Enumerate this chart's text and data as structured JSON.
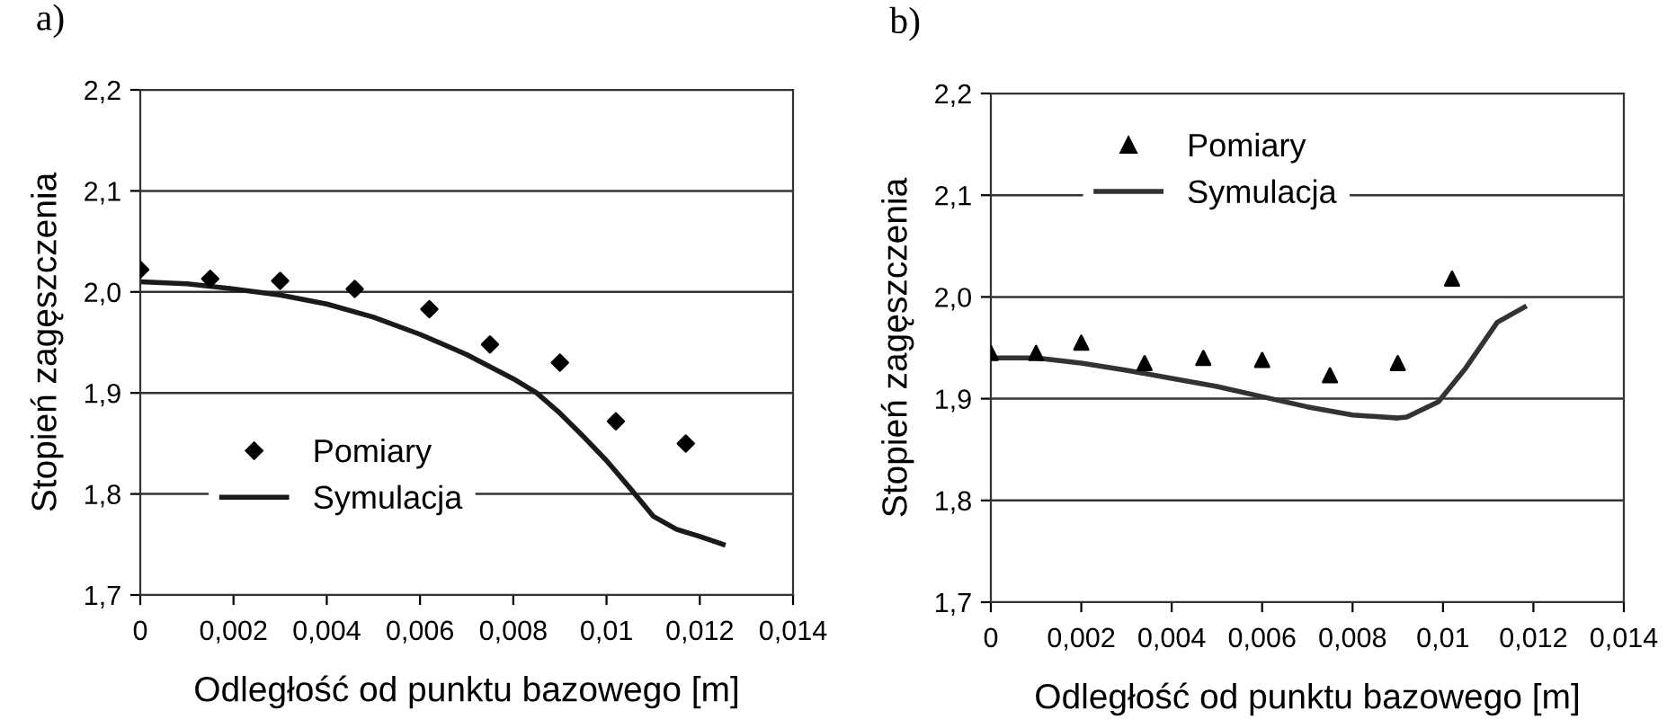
{
  "chart_data": [
    {
      "type": "scatter",
      "title": "a)",
      "xlabel": "Odległość od punktu bazowego [m]",
      "ylabel": "Stopień zagęszczenia",
      "xlim": [
        0,
        0.014
      ],
      "ylim": [
        1.7,
        2.2
      ],
      "xticks": [
        {
          "value": 0,
          "label": "0"
        },
        {
          "value": 0.002,
          "label": "0,002"
        },
        {
          "value": 0.004,
          "label": "0,004"
        },
        {
          "value": 0.006,
          "label": "0,006"
        },
        {
          "value": 0.008,
          "label": "0,008"
        },
        {
          "value": 0.01,
          "label": "0,01"
        },
        {
          "value": 0.012,
          "label": "0,012"
        },
        {
          "value": 0.014,
          "label": "0,014"
        }
      ],
      "yticks": [
        {
          "value": 1.7,
          "label": "1,7"
        },
        {
          "value": 1.8,
          "label": "1,8"
        },
        {
          "value": 1.9,
          "label": "1,9"
        },
        {
          "value": 2.0,
          "label": "2,0"
        },
        {
          "value": 2.1,
          "label": "2,1"
        },
        {
          "value": 2.2,
          "label": "2,2"
        }
      ],
      "grid": "y",
      "legend": "bottom left",
      "series": [
        {
          "name": "Pomiary",
          "marker": "diamond",
          "color": "#000000",
          "x": [
            0,
            0.0015,
            0.003,
            0.0046,
            0.0062,
            0.0075,
            0.009,
            0.0102,
            0.0117
          ],
          "values": [
            2.022,
            2.013,
            2.011,
            2.003,
            1.983,
            1.948,
            1.93,
            1.872,
            1.85
          ]
        },
        {
          "name": "Symulacja",
          "type": "line",
          "marker": "none",
          "line_style": "solid",
          "color": "#1a1a1a",
          "x": [
            0,
            0.001,
            0.002,
            0.003,
            0.004,
            0.005,
            0.006,
            0.007,
            0.008,
            0.0085,
            0.009,
            0.0095,
            0.01,
            0.0105,
            0.011,
            0.0115,
            0.012,
            0.0125
          ],
          "values": [
            2.01,
            2.008,
            2.003,
            1.997,
            1.988,
            1.975,
            1.958,
            1.938,
            1.914,
            1.9,
            1.88,
            1.857,
            1.833,
            1.806,
            1.778,
            1.765,
            1.758,
            1.75
          ]
        }
      ]
    },
    {
      "type": "scatter",
      "title": "b)",
      "xlabel": "Odległość od punktu bazowego [m]",
      "ylabel": "Stopień zagęszczenia",
      "xlim": [
        0,
        0.014
      ],
      "ylim": [
        1.7,
        2.2
      ],
      "xticks": [
        {
          "value": 0,
          "label": "0"
        },
        {
          "value": 0.002,
          "label": "0,002"
        },
        {
          "value": 0.004,
          "label": "0,004"
        },
        {
          "value": 0.006,
          "label": "0,006"
        },
        {
          "value": 0.008,
          "label": "0,008"
        },
        {
          "value": 0.01,
          "label": "0,01"
        },
        {
          "value": 0.012,
          "label": "0,012"
        },
        {
          "value": 0.014,
          "label": "0,014"
        }
      ],
      "yticks": [
        {
          "value": 1.7,
          "label": "1,7"
        },
        {
          "value": 1.8,
          "label": "1,8"
        },
        {
          "value": 1.9,
          "label": "1,9"
        },
        {
          "value": 2.0,
          "label": "2,0"
        },
        {
          "value": 2.1,
          "label": "2,1"
        },
        {
          "value": 2.2,
          "label": "2,2"
        }
      ],
      "grid": "y",
      "legend": "top left",
      "series": [
        {
          "name": "Pomiary",
          "marker": "triangle",
          "color": "#000000",
          "x": [
            0,
            0.001,
            0.002,
            0.0034,
            0.0047,
            0.006,
            0.0075,
            0.009,
            0.0102
          ],
          "values": [
            1.945,
            1.945,
            1.955,
            1.935,
            1.94,
            1.938,
            1.923,
            1.935,
            2.018
          ]
        },
        {
          "name": "Symulacja",
          "type": "line",
          "marker": "none",
          "line_style": "solid",
          "color": "#333333",
          "x": [
            0,
            0.001,
            0.002,
            0.003,
            0.004,
            0.005,
            0.006,
            0.007,
            0.008,
            0.009,
            0.0092,
            0.0099,
            0.0105,
            0.0112,
            0.0118
          ],
          "values": [
            1.94,
            1.94,
            1.935,
            1.928,
            1.92,
            1.912,
            1.902,
            1.892,
            1.884,
            1.881,
            1.882,
            1.897,
            1.93,
            1.975,
            1.99
          ]
        }
      ]
    }
  ]
}
